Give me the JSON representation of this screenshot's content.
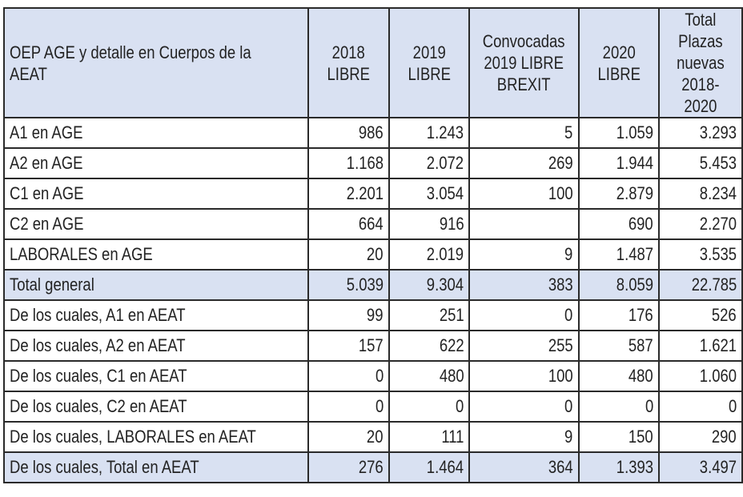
{
  "table": {
    "headers": [
      "OEP AGE y detalle en Cuerpos de la AEAT",
      "2018 LIBRE",
      "2019 LIBRE",
      "Convocadas\n2019 LIBRE\nBREXIT",
      "2020 LIBRE",
      "Total Plazas\nnuevas\n2018-2020"
    ],
    "header_bg": "#d9e1f2",
    "rows": [
      {
        "label": "A1 en AGE",
        "values": [
          "986",
          "1.243",
          "5",
          "1.059",
          "3.293"
        ]
      },
      {
        "label": "A2 en AGE",
        "values": [
          "1.168",
          "2.072",
          "269",
          "1.944",
          "5.453"
        ]
      },
      {
        "label": "C1 en AGE",
        "values": [
          "2.201",
          "3.054",
          "100",
          "2.879",
          "8.234"
        ]
      },
      {
        "label": "C2 en AGE",
        "values": [
          "664",
          "916",
          "",
          "690",
          "2.270"
        ]
      },
      {
        "label": "LABORALES en AGE",
        "values": [
          "20",
          "2.019",
          "9",
          "1.487",
          "3.535"
        ]
      },
      {
        "label": "Total general",
        "values": [
          "5.039",
          "9.304",
          "383",
          "8.059",
          "22.785"
        ],
        "highlight": true
      },
      {
        "label": "De los cuales, A1 en AEAT",
        "values": [
          "99",
          "251",
          "0",
          "176",
          "526"
        ]
      },
      {
        "label": "De los cuales, A2 en AEAT",
        "values": [
          "157",
          "622",
          "255",
          "587",
          "1.621"
        ]
      },
      {
        "label": "De los cuales, C1 en AEAT",
        "values": [
          "0",
          "480",
          "100",
          "480",
          "1.060"
        ]
      },
      {
        "label": "De los cuales, C2 en AEAT",
        "values": [
          "0",
          "0",
          "0",
          "0",
          "0"
        ]
      },
      {
        "label": "De los cuales, LABORALES en AEAT",
        "values": [
          "20",
          "111",
          "9",
          "150",
          "290"
        ]
      },
      {
        "label": "De los cuales, Total en AEAT",
        "values": [
          "276",
          "1.464",
          "364",
          "1.393",
          "3.497"
        ],
        "highlight": true
      }
    ]
  }
}
